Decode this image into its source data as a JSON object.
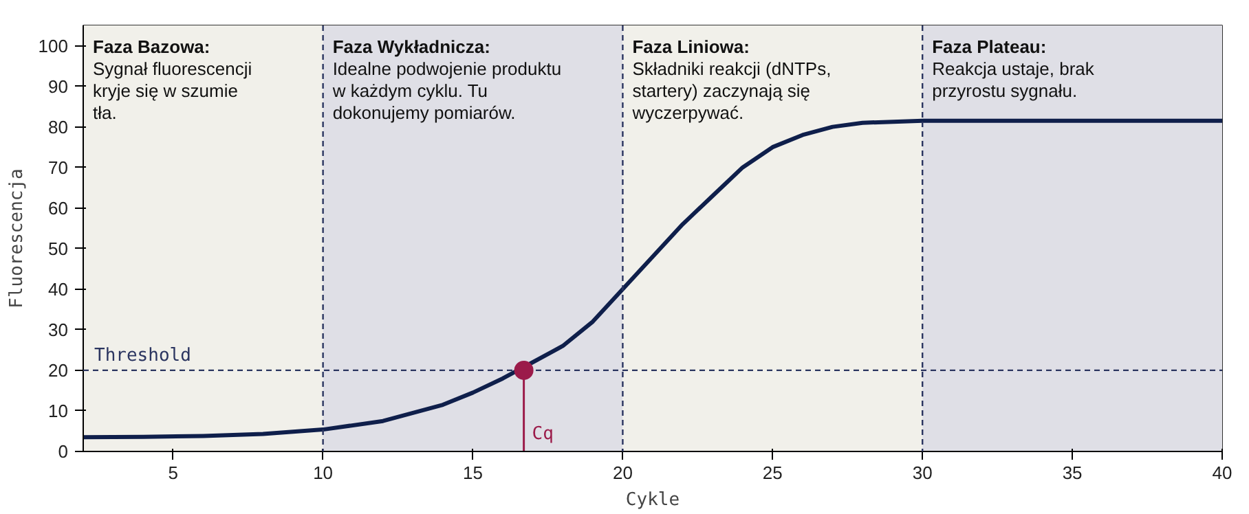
{
  "chart_data": {
    "type": "line",
    "xlabel": "Cykle",
    "ylabel": "Fluorescencja",
    "xlim": [
      2,
      40
    ],
    "ylim": [
      0,
      105
    ],
    "xticks": [
      5,
      10,
      15,
      20,
      25,
      30,
      35,
      40
    ],
    "yticks": [
      0,
      10,
      20,
      30,
      40,
      50,
      60,
      70,
      80,
      90,
      100
    ],
    "line_style": "solid",
    "series": [
      {
        "color": "#0f1f4b",
        "x": [
          2,
          4,
          6,
          8,
          10,
          12,
          14,
          15,
          16,
          18,
          19,
          20,
          21,
          22,
          23,
          24,
          25,
          26,
          27,
          28,
          30,
          35,
          40
        ],
        "values": [
          3.5,
          3.6,
          3.8,
          4.3,
          5.4,
          7.5,
          11.5,
          14.5,
          18,
          26,
          32,
          40,
          48,
          56,
          63,
          70,
          75,
          78,
          80,
          81,
          81.5,
          81.5,
          81.5
        ]
      },
      {
        "type": "scatter",
        "color": "#9b1b4a",
        "x": [
          16.7
        ],
        "values": [
          20
        ],
        "marker": "circle"
      }
    ],
    "bands": [
      {
        "axis": "x",
        "from": 2,
        "to": 10,
        "label": "Faza Bazowa: Sygnał fluorescencji kryje się w szumie tła.",
        "color": "#f1f0ea"
      },
      {
        "axis": "x",
        "from": 10,
        "to": 20,
        "label": "Faza Wykładnicza: Idealne podwojenie produktu w każdym cyklu. Tu dokonujemy pomiarów.",
        "color": "#dfdfe6"
      },
      {
        "axis": "x",
        "from": 20,
        "to": 30,
        "label": "Faza Liniowa: Składniki reakcji (dNTPs, startery) zaczynają się wyczerpywać.",
        "color": "#f1f0ea"
      },
      {
        "axis": "x",
        "from": 30,
        "to": 40,
        "label": "Faza Plateau: Reakcja ustaje, brak przyrostu sygnału.",
        "color": "#dfdfe6"
      }
    ],
    "ref_lines": [
      {
        "axis": "x",
        "value": 10,
        "label": null,
        "color": "#2b3560",
        "line_style": "dashed"
      },
      {
        "axis": "x",
        "value": 20,
        "label": null,
        "color": "#2b3560",
        "line_style": "dashed"
      },
      {
        "axis": "x",
        "value": 30,
        "label": null,
        "color": "#2b3560",
        "line_style": "dashed"
      },
      {
        "axis": "y",
        "value": 20,
        "label": "Threshold",
        "color": "#2b3560",
        "line_style": "dashed"
      }
    ],
    "annotations": [
      {
        "text": "Cq",
        "x": 16.7,
        "y": 20
      }
    ]
  }
}
